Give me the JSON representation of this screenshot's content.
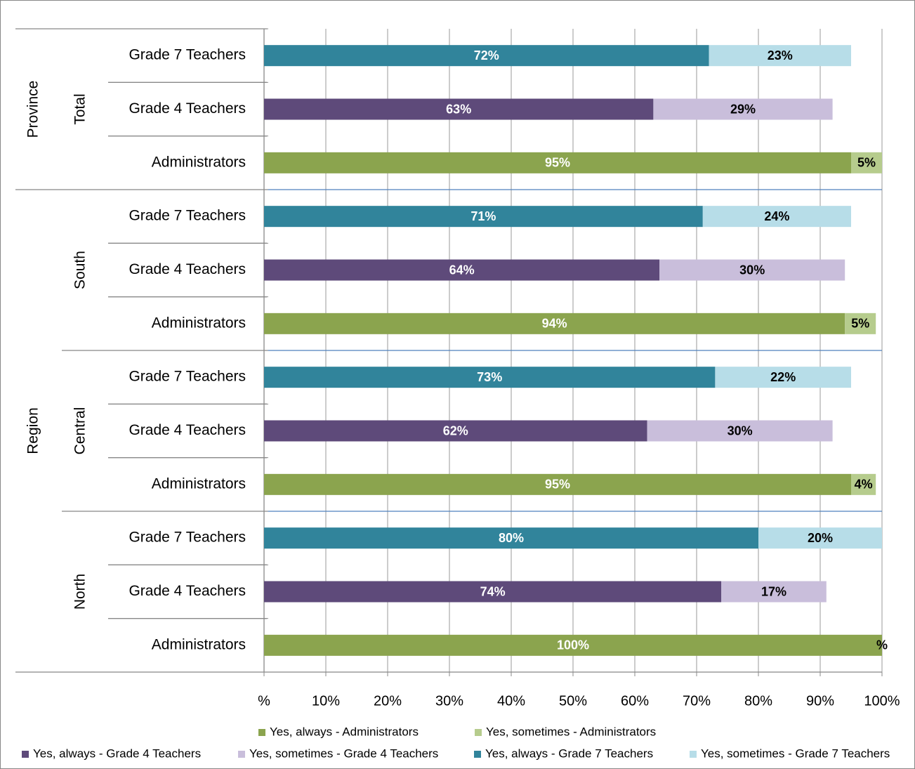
{
  "chart_data": {
    "type": "stacked-bar-horizontal",
    "groups": [
      {
        "name": "Province",
        "subgroups": [
          {
            "name": "Total",
            "categories": [
              "Grade 7 Teachers",
              "Grade 4 Teachers",
              "Administrators"
            ]
          }
        ]
      },
      {
        "name": "Region",
        "subgroups": [
          {
            "name": "South",
            "categories": [
              "Grade 7 Teachers",
              "Grade 4 Teachers",
              "Administrators"
            ]
          },
          {
            "name": "Central",
            "categories": [
              "Grade 7 Teachers",
              "Grade 4 Teachers",
              "Administrators"
            ]
          },
          {
            "name": "North",
            "categories": [
              "Grade 7 Teachers",
              "Grade 4 Teachers",
              "Administrators"
            ]
          }
        ]
      }
    ],
    "series": [
      {
        "name": "Yes, always - Administrators",
        "color": "#8ba44e",
        "label_color": "#ffffff",
        "values": [
          null,
          null,
          95,
          null,
          null,
          94,
          null,
          null,
          95,
          null,
          null,
          100
        ],
        "value_labels": [
          null,
          null,
          "95%",
          null,
          null,
          "94%",
          null,
          null,
          "95%",
          null,
          null,
          "100%"
        ]
      },
      {
        "name": "Yes, sometimes - Administrators",
        "color": "#b6cc8d",
        "label_color": "#000000",
        "values": [
          null,
          null,
          5,
          null,
          null,
          5,
          null,
          null,
          4,
          null,
          null,
          0
        ],
        "value_labels": [
          null,
          null,
          "5%",
          null,
          null,
          "5%",
          null,
          null,
          "4%",
          null,
          null,
          "%"
        ]
      },
      {
        "name": "Yes, always - Grade 4 Teachers",
        "color": "#5e4a7a",
        "label_color": "#ffffff",
        "values": [
          null,
          63,
          null,
          null,
          64,
          null,
          null,
          62,
          null,
          null,
          74,
          null
        ],
        "value_labels": [
          null,
          "63%",
          null,
          null,
          "64%",
          null,
          null,
          "62%",
          null,
          null,
          "74%",
          null
        ]
      },
      {
        "name": "Yes, sometimes - Grade 4 Teachers",
        "color": "#c9bedb",
        "label_color": "#000000",
        "values": [
          null,
          29,
          null,
          null,
          30,
          null,
          null,
          30,
          null,
          null,
          17,
          null
        ],
        "value_labels": [
          null,
          "29%",
          null,
          null,
          "30%",
          null,
          null,
          "30%",
          null,
          null,
          "17%",
          null
        ]
      },
      {
        "name": "Yes, always - Grade 7 Teachers",
        "color": "#31849b",
        "label_color": "#ffffff",
        "values": [
          72,
          null,
          null,
          71,
          null,
          null,
          73,
          null,
          null,
          80,
          null,
          null
        ],
        "value_labels": [
          "72%",
          null,
          null,
          "71%",
          null,
          null,
          "73%",
          null,
          null,
          "80%",
          null,
          null
        ]
      },
      {
        "name": "Yes, sometimes - Grade 7 Teachers",
        "color": "#b7dde8",
        "label_color": "#000000",
        "values": [
          23,
          null,
          null,
          24,
          null,
          null,
          22,
          null,
          null,
          20,
          null,
          null
        ],
        "value_labels": [
          "23%",
          null,
          null,
          "24%",
          null,
          null,
          "22%",
          null,
          null,
          "20%",
          null,
          null
        ]
      }
    ],
    "xlim": [
      0,
      100
    ],
    "xticks": [
      {
        "value": 0,
        "label": "%"
      },
      {
        "value": 10,
        "label": "10%"
      },
      {
        "value": 20,
        "label": "20%"
      },
      {
        "value": 30,
        "label": "30%"
      },
      {
        "value": 40,
        "label": "40%"
      },
      {
        "value": 50,
        "label": "50%"
      },
      {
        "value": 60,
        "label": "60%"
      },
      {
        "value": 70,
        "label": "70%"
      },
      {
        "value": 80,
        "label": "80%"
      },
      {
        "value": 90,
        "label": "90%"
      },
      {
        "value": 100,
        "label": "100%"
      }
    ],
    "grid": true,
    "legend": "bottom"
  }
}
